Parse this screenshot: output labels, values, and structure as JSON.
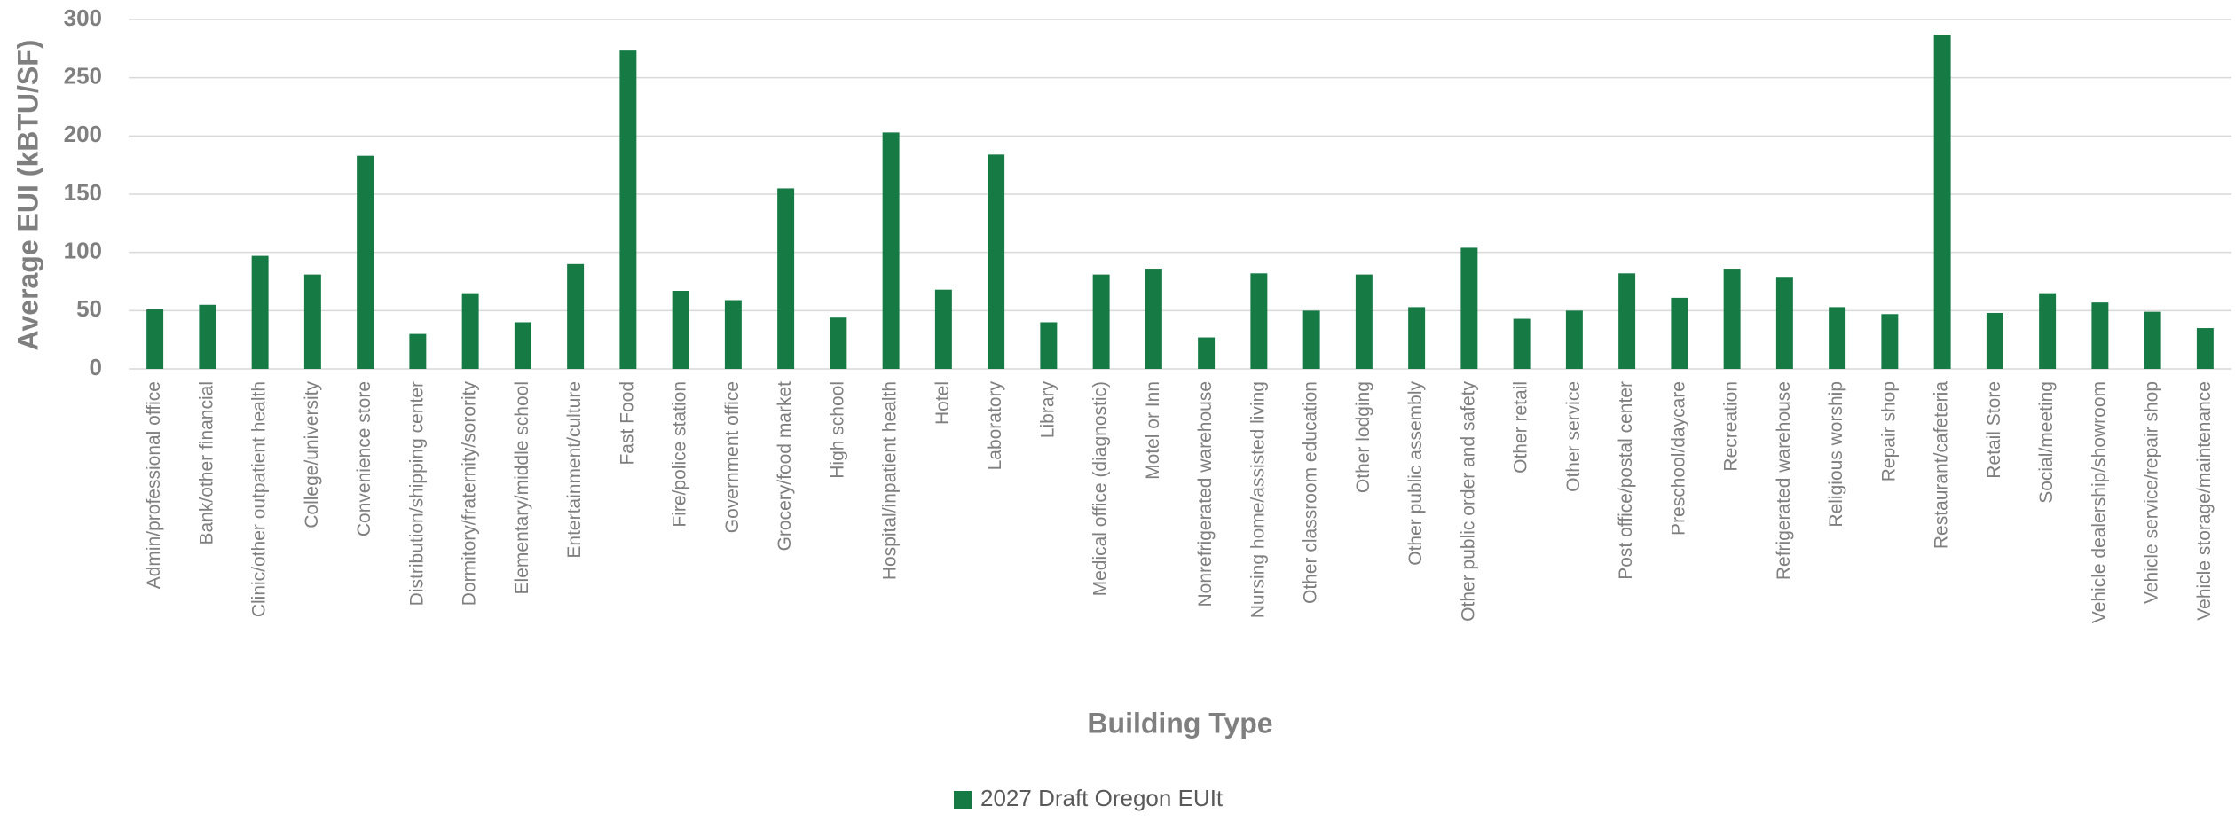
{
  "chart_data": {
    "type": "bar",
    "y_axis_label": "Average EUI (kBTU/SF)",
    "x_axis_label": "Building Type",
    "categories": [
      "Admin/professional office",
      "Bank/other financial",
      "Clinic/other outpatient health",
      "College/university",
      "Convenience store",
      "Distribution/shipping center",
      "Dormitory/fraternity/sorority",
      "Elementary/middle school",
      "Entertainment/culture",
      "Fast Food",
      "Fire/police station",
      "Government office",
      "Grocery/food market",
      "High school",
      "Hospital/inpatient health",
      "Hotel",
      "Laboratory",
      "Library",
      "Medical office (diagnostic)",
      "Motel or Inn",
      "Nonrefrigerated warehouse",
      "Nursing home/assisted living",
      "Other classroom education",
      "Other lodging",
      "Other public assembly",
      "Other public order and safety",
      "Other retail",
      "Other service",
      "Post office/postal center",
      "Preschool/daycare",
      "Recreation",
      "Refrigerated warehouse",
      "Religious worship",
      "Repair shop",
      "Restaurant/cafeteria",
      "Retail Store",
      "Social/meeting",
      "Vehicle dealership/showroom",
      "Vehicle service/repair shop",
      "Vehicle storage/maintenance"
    ],
    "series": [
      {
        "name": "2027 Draft Oregon EUIt",
        "color": "#167a45",
        "values": [
          51,
          55,
          97,
          81,
          183,
          30,
          65,
          40,
          90,
          274,
          67,
          59,
          155,
          44,
          203,
          68,
          184,
          40,
          81,
          86,
          27,
          82,
          50,
          81,
          53,
          104,
          43,
          50,
          82,
          61,
          86,
          79,
          53,
          47,
          287,
          48,
          65,
          57,
          49,
          35
        ]
      }
    ],
    "ylim": [
      0,
      300
    ],
    "yticks": [
      0,
      50,
      100,
      150,
      200,
      250,
      300
    ],
    "grid": true,
    "legend": "bottom"
  }
}
